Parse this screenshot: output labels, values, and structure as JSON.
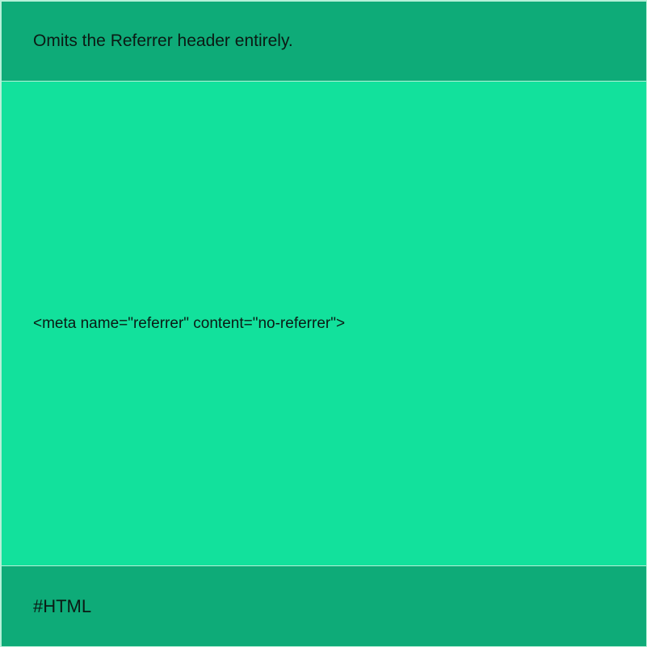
{
  "card": {
    "header_text": "Omits the Referrer header entirely.",
    "code_text": "<meta name=\"referrer\" content=\"no-referrer\">",
    "tag_text": "#HTML"
  },
  "colors": {
    "header_bg": "#0eab78",
    "content_bg": "#12e19c",
    "footer_bg": "#0eab78",
    "divider": "#b6f0d8",
    "text": "#0b1a14"
  }
}
